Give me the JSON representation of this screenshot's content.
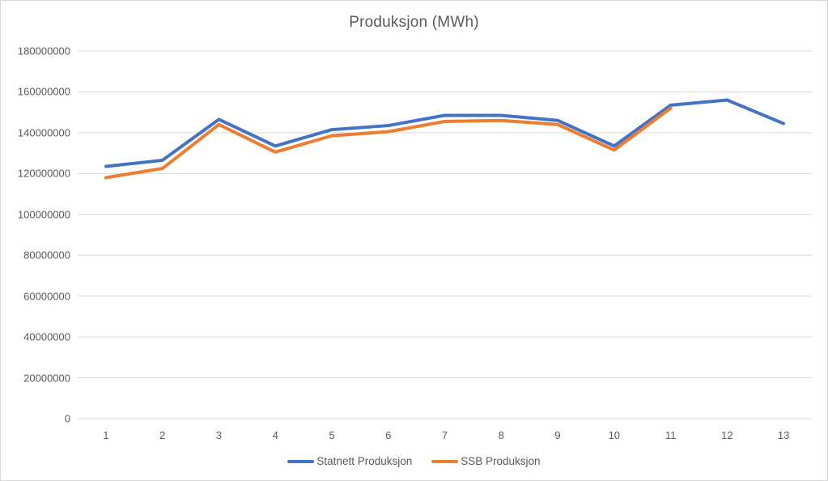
{
  "window": {
    "background": "#ffffff",
    "border_color": "#d7d7d7"
  },
  "chart_data": {
    "type": "line",
    "title": "Produksjon (MWh)",
    "xlabel": "",
    "ylabel": "",
    "categories": [
      "1",
      "2",
      "3",
      "4",
      "5",
      "6",
      "7",
      "8",
      "9",
      "10",
      "11",
      "12",
      "13"
    ],
    "series": [
      {
        "name": "Statnett Produksjon",
        "color": "#4472C4",
        "values": [
          123500000,
          126500000,
          146500000,
          133500000,
          141500000,
          143500000,
          148500000,
          148500000,
          146000000,
          133500000,
          153500000,
          156000000,
          144500000
        ]
      },
      {
        "name": "SSB Produksjon",
        "color": "#ED7D31",
        "values": [
          118000000,
          122500000,
          144000000,
          130500000,
          138500000,
          140500000,
          145500000,
          146000000,
          144000000,
          131500000,
          152000000
        ]
      }
    ],
    "ylim": [
      0,
      180000000
    ],
    "y_tick_step": 20000000,
    "y_tick_labels": [
      "0",
      "20000000",
      "40000000",
      "60000000",
      "80000000",
      "100000000",
      "120000000",
      "140000000",
      "160000000",
      "180000000"
    ],
    "grid": true,
    "gridline_color": "#D9D9D9",
    "text_color": "#595959",
    "line_width": 4,
    "legend_position": "bottom"
  }
}
